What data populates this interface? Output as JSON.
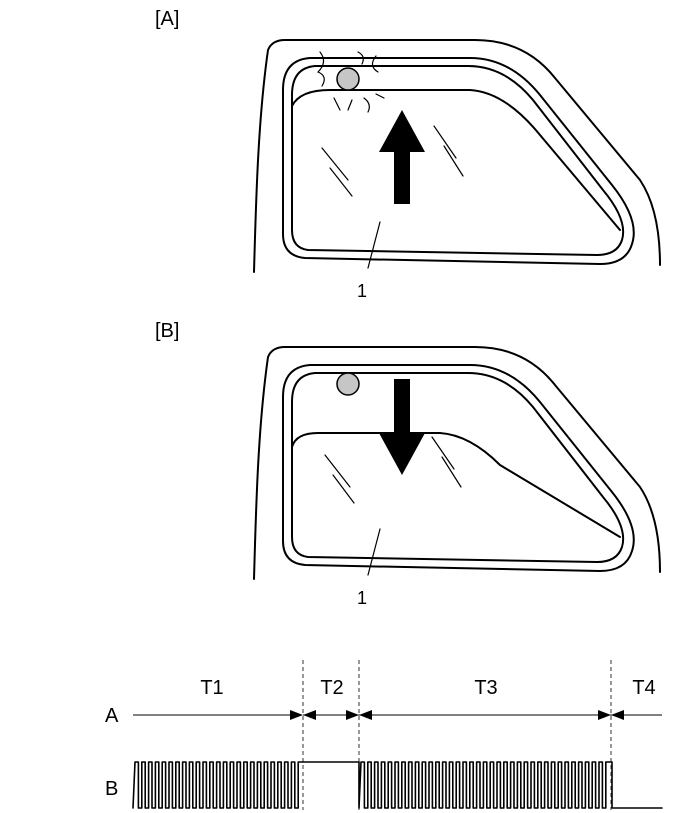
{
  "panels": [
    {
      "label": "[A]",
      "part_number": "1",
      "arrow_direction": "up"
    },
    {
      "label": "[B]",
      "part_number": "1",
      "arrow_direction": "down"
    }
  ],
  "timing": {
    "row_a_label": "A",
    "row_b_label": "B",
    "periods": [
      "T1",
      "T2",
      "T3",
      "T4"
    ]
  }
}
